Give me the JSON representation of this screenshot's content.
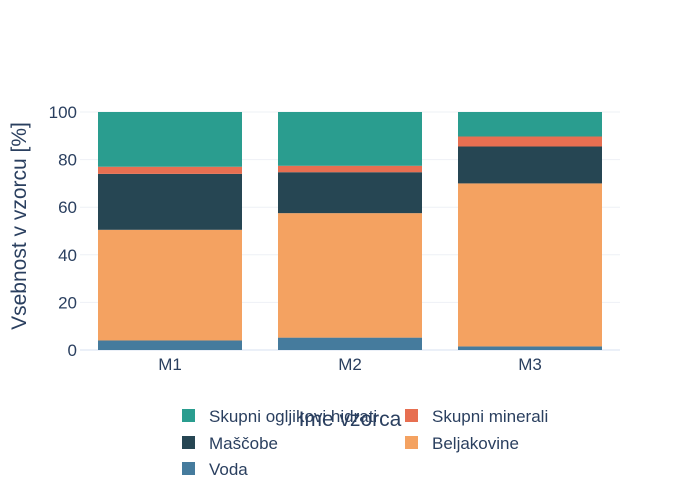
{
  "chart_data": {
    "type": "bar",
    "stacked": true,
    "categories": [
      "M1",
      "M2",
      "M3"
    ],
    "series": [
      {
        "name": "Voda",
        "color": "#457b9d",
        "values": [
          4,
          5.2,
          1.5
        ]
      },
      {
        "name": "Beljakovine",
        "color": "#f4a261",
        "values": [
          46.5,
          52.3,
          68.5
        ]
      },
      {
        "name": "Maščobe",
        "color": "#264653",
        "values": [
          23.5,
          17.2,
          15.5
        ]
      },
      {
        "name": "Skupni minerali",
        "color": "#e76f51",
        "values": [
          3,
          2.7,
          4.2
        ]
      },
      {
        "name": "Skupni ogljikovi hidrati",
        "color": "#2a9d8f",
        "values": [
          23,
          22.6,
          10.3
        ]
      }
    ],
    "ylim": [
      0,
      100
    ],
    "yticks": [
      0,
      20,
      40,
      60,
      80,
      100
    ],
    "xlabel": "Ime vzorca",
    "ylabel": "Vsebnost v vzorcu [%]",
    "grid": true,
    "legend_placement": "bottom",
    "legend_order": [
      "Skupni ogljikovi hidrati",
      "Skupni minerali",
      "Maščobe",
      "Beljakovine",
      "Voda"
    ]
  }
}
